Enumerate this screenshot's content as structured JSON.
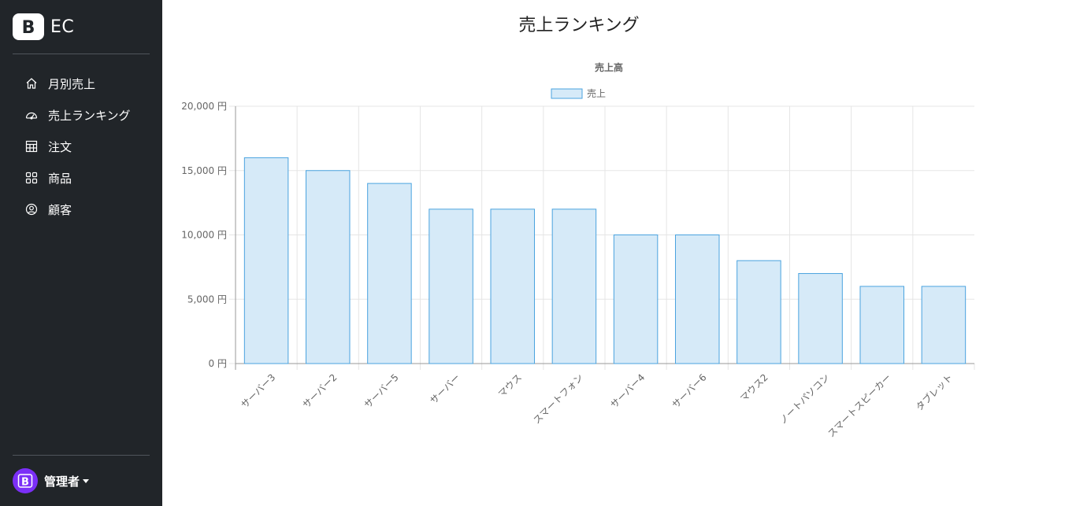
{
  "sidebar": {
    "brand": "EC",
    "items": [
      {
        "label": "月別売上",
        "icon": "house-icon"
      },
      {
        "label": "売上ランキング",
        "icon": "speedometer-icon"
      },
      {
        "label": "注文",
        "icon": "table-icon"
      },
      {
        "label": "商品",
        "icon": "grid-icon"
      },
      {
        "label": "顧客",
        "icon": "person-circle-icon"
      }
    ],
    "user": "管理者"
  },
  "page": {
    "title": "売上ランキング"
  },
  "chart_data": {
    "type": "bar",
    "title": "売上高",
    "categories": [
      "サーバー3",
      "サーバー2",
      "サーバー5",
      "サーバー",
      "マウス",
      "スマートフォン",
      "サーバー4",
      "サーバー6",
      "マウス2",
      "ノートパソコン",
      "スマートスピーカー",
      "タブレット"
    ],
    "series": [
      {
        "name": "売上",
        "values": [
          16000,
          15000,
          14000,
          12000,
          12000,
          12000,
          10000,
          10000,
          8000,
          7000,
          6000,
          6000
        ]
      }
    ],
    "yticks": [
      "0 円",
      "5,000 円",
      "10,000 円",
      "15,000 円",
      "20,000 円"
    ],
    "ylim": [
      0,
      20000
    ],
    "grid": true,
    "legend": "top",
    "colors": {
      "fill": "#d6eaf8",
      "stroke": "#4aa3df",
      "grid": "#e5e5e5",
      "axis": "#999999"
    }
  }
}
